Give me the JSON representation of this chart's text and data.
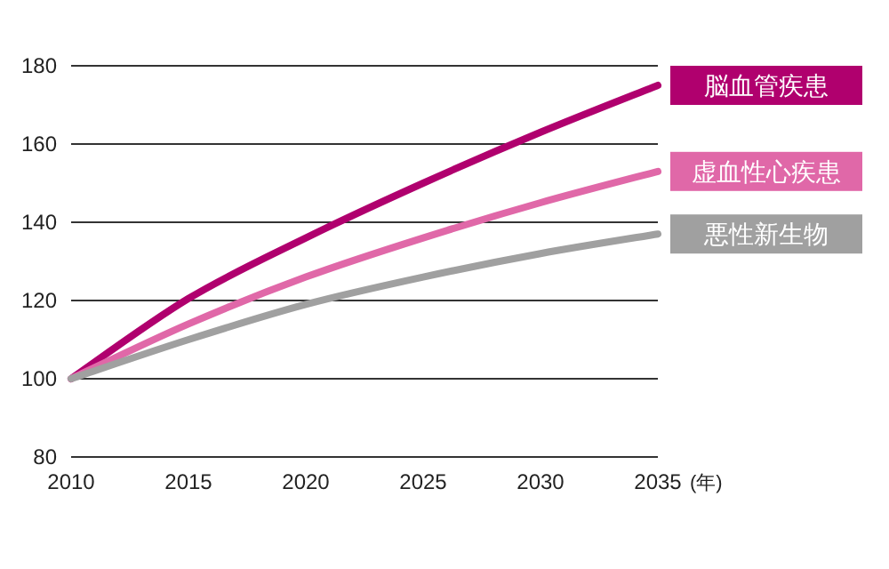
{
  "chart_data": {
    "type": "line",
    "xlabel": "(年)",
    "x": [
      2010,
      2015,
      2020,
      2025,
      2030,
      2035
    ],
    "xlim": [
      2010,
      2035
    ],
    "xticks": [
      2010,
      2015,
      2020,
      2025,
      2030,
      2035
    ],
    "ylim": [
      80,
      180
    ],
    "yticks": [
      80,
      100,
      120,
      140,
      160,
      180
    ],
    "grid": "y",
    "legend": "right",
    "marker": "none",
    "line_style": "solid",
    "series": [
      {
        "name": "脳血管疾患",
        "color": "#b0006e",
        "values": [
          100,
          120.5,
          136,
          150,
          163,
          175
        ]
      },
      {
        "name": "虚血性心疾患",
        "color": "#e068a8",
        "values": [
          100,
          114,
          126,
          136,
          145,
          153
        ]
      },
      {
        "name": "悪性新生物",
        "color": "#a0a0a0",
        "values": [
          100,
          110,
          119,
          126,
          132,
          137
        ]
      }
    ]
  }
}
